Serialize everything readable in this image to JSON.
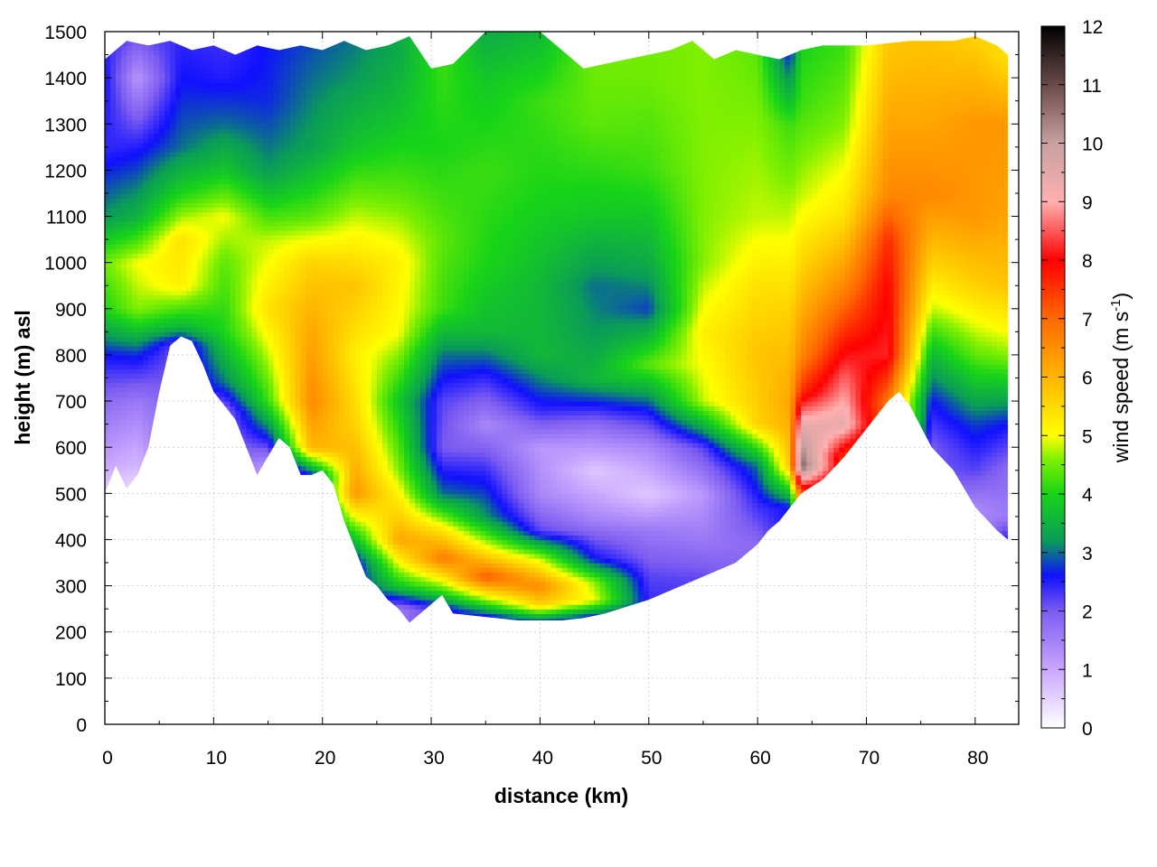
{
  "chart_data": {
    "type": "heatmap",
    "title": "",
    "xlabel": "distance (km)",
    "ylabel": "height (m) asl",
    "xlim": [
      0,
      84
    ],
    "ylim": [
      0,
      1500
    ],
    "x_ticks": [
      0,
      10,
      20,
      30,
      40,
      50,
      60,
      70,
      80
    ],
    "y_ticks": [
      0,
      100,
      200,
      300,
      400,
      500,
      600,
      700,
      800,
      900,
      1000,
      1100,
      1200,
      1300,
      1400,
      1500
    ],
    "grid": true,
    "colorbar": {
      "label_main": "wind speed (m s",
      "label_sup": "-1",
      "label_close": ")",
      "range": [
        0,
        12
      ],
      "ticks": [
        0,
        1,
        2,
        3,
        4,
        5,
        6,
        7,
        8,
        9,
        10,
        11,
        12
      ],
      "stops": [
        {
          "value": 0,
          "color": "#ffffff"
        },
        {
          "value": 1,
          "color": "#c9a6ff"
        },
        {
          "value": 2,
          "color": "#7b5cf0"
        },
        {
          "value": 2.6,
          "color": "#1010ff"
        },
        {
          "value": 3.2,
          "color": "#0a9c58"
        },
        {
          "value": 4,
          "color": "#18d418"
        },
        {
          "value": 4.6,
          "color": "#80f000"
        },
        {
          "value": 5,
          "color": "#ffff00"
        },
        {
          "value": 6,
          "color": "#ffb400"
        },
        {
          "value": 7,
          "color": "#ff6a00"
        },
        {
          "value": 8,
          "color": "#ff0000"
        },
        {
          "value": 9,
          "color": "#ffb0b0"
        },
        {
          "value": 10,
          "color": "#c8a0a0"
        },
        {
          "value": 11,
          "color": "#6a4a4a"
        },
        {
          "value": 12,
          "color": "#000000"
        }
      ]
    },
    "terrain_surface": {
      "x": [
        0,
        1,
        2,
        3,
        4,
        5,
        6,
        7,
        8,
        9,
        10,
        12,
        14,
        15,
        16,
        17,
        18,
        19,
        20,
        21,
        22,
        23,
        24,
        25,
        26,
        27,
        28,
        29,
        30,
        31,
        32,
        34,
        36,
        38,
        40,
        42,
        44,
        46,
        48,
        50,
        52,
        54,
        56,
        58,
        60,
        61,
        62,
        63,
        64,
        66,
        68,
        70,
        72,
        73,
        74,
        76,
        78,
        80,
        82,
        83
      ],
      "y": [
        500,
        560,
        510,
        540,
        600,
        720,
        820,
        840,
        830,
        780,
        720,
        660,
        540,
        580,
        620,
        600,
        540,
        540,
        550,
        520,
        440,
        380,
        320,
        300,
        270,
        250,
        220,
        240,
        260,
        280,
        240,
        235,
        230,
        225,
        225,
        225,
        230,
        240,
        255,
        270,
        290,
        310,
        330,
        350,
        390,
        420,
        440,
        470,
        500,
        530,
        580,
        640,
        700,
        720,
        690,
        600,
        550,
        470,
        420,
        400
      ]
    },
    "top_boundary": {
      "x": [
        0,
        2,
        4,
        6,
        8,
        10,
        12,
        14,
        16,
        18,
        20,
        22,
        24,
        26,
        28,
        30,
        32,
        35,
        40,
        44,
        48,
        52,
        54,
        56,
        58,
        60,
        62,
        64,
        66,
        70,
        74,
        78,
        80,
        82,
        83
      ],
      "y": [
        1440,
        1480,
        1470,
        1480,
        1460,
        1470,
        1450,
        1470,
        1460,
        1470,
        1460,
        1480,
        1460,
        1470,
        1490,
        1420,
        1430,
        1500,
        1500,
        1420,
        1440,
        1460,
        1480,
        1440,
        1460,
        1450,
        1440,
        1460,
        1470,
        1470,
        1480,
        1480,
        1490,
        1470,
        1450
      ]
    },
    "field": [
      {
        "x": 0,
        "bands": [
          [
            500,
            0.5
          ],
          [
            560,
            1.0
          ],
          [
            700,
            1.8
          ],
          [
            800,
            2.6
          ],
          [
            900,
            4.0
          ],
          [
            1000,
            4.5
          ],
          [
            1100,
            3.2
          ],
          [
            1250,
            2.4
          ],
          [
            1400,
            2.6
          ],
          [
            1500,
            2.4
          ]
        ]
      },
      {
        "x": 3,
        "bands": [
          [
            500,
            0.3
          ],
          [
            560,
            0.8
          ],
          [
            700,
            1.6
          ],
          [
            800,
            2.7
          ],
          [
            900,
            4.6
          ],
          [
            1000,
            5.0
          ],
          [
            1100,
            3.5
          ],
          [
            1250,
            2.5
          ],
          [
            1400,
            1.2
          ],
          [
            1500,
            2.2
          ]
        ]
      },
      {
        "x": 7,
        "bands": [
          [
            820,
            2.0
          ],
          [
            860,
            3.5
          ],
          [
            950,
            5.2
          ],
          [
            1050,
            5.4
          ],
          [
            1150,
            4.0
          ],
          [
            1250,
            3.0
          ],
          [
            1400,
            2.6
          ],
          [
            1500,
            2.4
          ]
        ]
      },
      {
        "x": 11,
        "bands": [
          [
            680,
            1.8
          ],
          [
            740,
            3.0
          ],
          [
            850,
            4.0
          ],
          [
            1000,
            4.4
          ],
          [
            1100,
            5.0
          ],
          [
            1200,
            3.8
          ],
          [
            1300,
            3.0
          ],
          [
            1400,
            2.5
          ],
          [
            1500,
            2.3
          ]
        ]
      },
      {
        "x": 15,
        "bands": [
          [
            560,
            1.2
          ],
          [
            620,
            2.6
          ],
          [
            700,
            4.2
          ],
          [
            900,
            5.4
          ],
          [
            1050,
            4.8
          ],
          [
            1200,
            3.2
          ],
          [
            1350,
            2.7
          ],
          [
            1500,
            2.6
          ]
        ]
      },
      {
        "x": 19,
        "bands": [
          [
            540,
            2.6
          ],
          [
            600,
            6.0
          ],
          [
            700,
            6.6
          ],
          [
            850,
            6.2
          ],
          [
            1000,
            5.6
          ],
          [
            1100,
            4.4
          ],
          [
            1250,
            3.3
          ],
          [
            1400,
            3.0
          ],
          [
            1500,
            2.8
          ]
        ]
      },
      {
        "x": 23,
        "bands": [
          [
            350,
            2.4
          ],
          [
            420,
            4.2
          ],
          [
            500,
            6.4
          ],
          [
            650,
            5.6
          ],
          [
            800,
            5.2
          ],
          [
            950,
            5.8
          ],
          [
            1100,
            4.8
          ],
          [
            1250,
            3.8
          ],
          [
            1400,
            3.2
          ],
          [
            1500,
            3.0
          ]
        ]
      },
      {
        "x": 27,
        "bands": [
          [
            250,
            1.6
          ],
          [
            300,
            3.8
          ],
          [
            400,
            6.2
          ],
          [
            550,
            4.6
          ],
          [
            700,
            3.8
          ],
          [
            850,
            5.0
          ],
          [
            1000,
            5.2
          ],
          [
            1150,
            4.4
          ],
          [
            1300,
            3.8
          ],
          [
            1450,
            3.4
          ]
        ]
      },
      {
        "x": 31,
        "bands": [
          [
            250,
            2.4
          ],
          [
            290,
            4.2
          ],
          [
            360,
            6.8
          ],
          [
            420,
            5.4
          ],
          [
            500,
            3.0
          ],
          [
            600,
            2.0
          ],
          [
            700,
            2.2
          ],
          [
            800,
            3.0
          ],
          [
            900,
            4.2
          ],
          [
            1050,
            4.4
          ],
          [
            1250,
            4.0
          ],
          [
            1430,
            4.2
          ]
        ]
      },
      {
        "x": 35,
        "bands": [
          [
            235,
            2.6
          ],
          [
            270,
            4.6
          ],
          [
            320,
            7.2
          ],
          [
            380,
            5.2
          ],
          [
            450,
            3.2
          ],
          [
            550,
            2.4
          ],
          [
            650,
            1.4
          ],
          [
            750,
            2.4
          ],
          [
            850,
            3.6
          ],
          [
            1000,
            4.0
          ],
          [
            1200,
            4.2
          ],
          [
            1400,
            3.8
          ],
          [
            1500,
            3.4
          ]
        ]
      },
      {
        "x": 40,
        "bands": [
          [
            225,
            3.0
          ],
          [
            260,
            5.6
          ],
          [
            300,
            6.6
          ],
          [
            360,
            4.8
          ],
          [
            420,
            2.2
          ],
          [
            500,
            1.4
          ],
          [
            600,
            1.2
          ],
          [
            680,
            2.4
          ],
          [
            800,
            3.6
          ],
          [
            950,
            3.6
          ],
          [
            1150,
            4.0
          ],
          [
            1350,
            4.2
          ],
          [
            1500,
            3.6
          ]
        ]
      },
      {
        "x": 45,
        "bands": [
          [
            230,
            2.4
          ],
          [
            270,
            5.0
          ],
          [
            310,
            4.6
          ],
          [
            360,
            2.6
          ],
          [
            450,
            1.4
          ],
          [
            550,
            0.6
          ],
          [
            650,
            1.8
          ],
          [
            750,
            3.6
          ],
          [
            850,
            3.2
          ],
          [
            950,
            3.0
          ],
          [
            1100,
            3.8
          ],
          [
            1300,
            4.4
          ],
          [
            1420,
            4.5
          ]
        ]
      },
      {
        "x": 50,
        "bands": [
          [
            270,
            2.4
          ],
          [
            320,
            2.2
          ],
          [
            420,
            1.6
          ],
          [
            500,
            0.6
          ],
          [
            600,
            1.4
          ],
          [
            680,
            2.6
          ],
          [
            780,
            4.4
          ],
          [
            900,
            2.8
          ],
          [
            1000,
            3.4
          ],
          [
            1200,
            4.2
          ],
          [
            1400,
            4.5
          ]
        ]
      },
      {
        "x": 55,
        "bands": [
          [
            310,
            2.2
          ],
          [
            400,
            1.6
          ],
          [
            500,
            1.2
          ],
          [
            600,
            2.2
          ],
          [
            700,
            4.8
          ],
          [
            850,
            5.2
          ],
          [
            1000,
            4.6
          ],
          [
            1200,
            4.6
          ],
          [
            1450,
            4.6
          ]
        ]
      },
      {
        "x": 60,
        "bands": [
          [
            390,
            1.8
          ],
          [
            480,
            2.4
          ],
          [
            560,
            3.0
          ],
          [
            650,
            5.6
          ],
          [
            800,
            5.8
          ],
          [
            950,
            5.4
          ],
          [
            1100,
            4.8
          ],
          [
            1300,
            4.6
          ],
          [
            1450,
            4.4
          ]
        ]
      },
      {
        "x": 63,
        "bands": [
          [
            470,
            2.6
          ],
          [
            560,
            5.8
          ],
          [
            700,
            6.2
          ],
          [
            900,
            5.6
          ],
          [
            1100,
            4.8
          ],
          [
            1300,
            4.2
          ],
          [
            1450,
            2.6
          ]
        ]
      },
      {
        "x": 64,
        "bands": [
          [
            500,
            7.2
          ],
          [
            560,
            10.8
          ],
          [
            640,
            9.6
          ],
          [
            720,
            7.6
          ],
          [
            800,
            6.6
          ],
          [
            950,
            5.8
          ],
          [
            1150,
            4.8
          ],
          [
            1350,
            4.2
          ],
          [
            1460,
            4.0
          ]
        ]
      },
      {
        "x": 68,
        "bands": [
          [
            580,
            7.4
          ],
          [
            650,
            9.4
          ],
          [
            750,
            8.6
          ],
          [
            850,
            7.6
          ],
          [
            950,
            6.6
          ],
          [
            1100,
            5.4
          ],
          [
            1300,
            4.6
          ],
          [
            1470,
            4.2
          ]
        ]
      },
      {
        "x": 72,
        "bands": [
          [
            700,
            6.8
          ],
          [
            800,
            8.2
          ],
          [
            950,
            8.0
          ],
          [
            1050,
            7.6
          ],
          [
            1150,
            6.6
          ],
          [
            1300,
            6.2
          ],
          [
            1450,
            5.8
          ]
        ]
      },
      {
        "x": 76,
        "bands": [
          [
            600,
            2.0
          ],
          [
            700,
            2.6
          ],
          [
            800,
            3.6
          ],
          [
            900,
            4.8
          ],
          [
            1000,
            5.6
          ],
          [
            1150,
            6.6
          ],
          [
            1300,
            6.2
          ],
          [
            1480,
            5.8
          ]
        ]
      },
      {
        "x": 80,
        "bands": [
          [
            470,
            1.4
          ],
          [
            550,
            2.2
          ],
          [
            650,
            2.8
          ],
          [
            800,
            4.4
          ],
          [
            950,
            5.6
          ],
          [
            1100,
            6.4
          ],
          [
            1300,
            6.4
          ],
          [
            1490,
            5.6
          ]
        ]
      },
      {
        "x": 83,
        "bands": [
          [
            400,
            2.6
          ],
          [
            450,
            1.6
          ],
          [
            550,
            1.8
          ],
          [
            650,
            2.6
          ],
          [
            800,
            4.6
          ],
          [
            950,
            5.8
          ],
          [
            1100,
            6.2
          ],
          [
            1300,
            6.4
          ],
          [
            1450,
            5.4
          ]
        ]
      }
    ]
  }
}
